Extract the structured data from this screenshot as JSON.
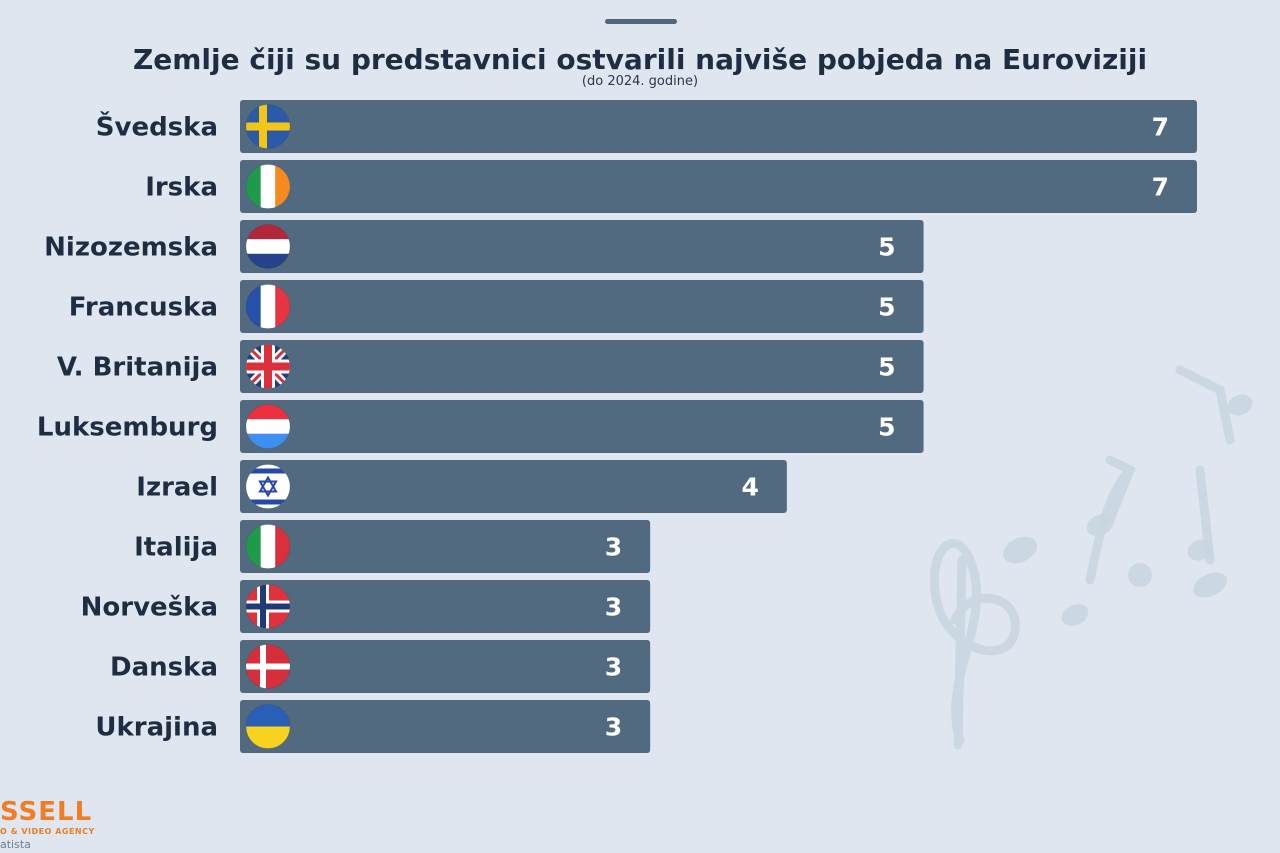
{
  "chart_data": {
    "type": "bar",
    "orientation": "horizontal",
    "title": "Zemlje čiji su predstavnici ostvarili najviše pobjeda na Euroviziji",
    "subtitle": "(do 2024. godine)",
    "categories": [
      "Švedska",
      "Irska",
      "Nizozemska",
      "Francuska",
      "V. Britanija",
      "Luksemburg",
      "Izrael",
      "Italija",
      "Norveška",
      "Danska",
      "Ukrajina"
    ],
    "values": [
      7,
      7,
      5,
      5,
      5,
      5,
      4,
      3,
      3,
      3,
      3
    ],
    "xlim": [
      0,
      7
    ],
    "grid": false,
    "legend": "none",
    "data_labels": true,
    "flags": [
      "sweden-flag-icon",
      "ireland-flag-icon",
      "netherlands-flag-icon",
      "france-flag-icon",
      "united-kingdom-flag-icon",
      "luxembourg-flag-icon",
      "israel-flag-icon",
      "italy-flag-icon",
      "norway-flag-icon",
      "denmark-flag-icon",
      "ukraine-flag-icon"
    ],
    "colors": {
      "bar": "#526a80",
      "label": "#1f2d43",
      "value": "#ffffff"
    }
  },
  "footer": {
    "logo_text": "SSELL",
    "logo_tagline": "O & VIDEO AGENCY",
    "source": "atista"
  }
}
